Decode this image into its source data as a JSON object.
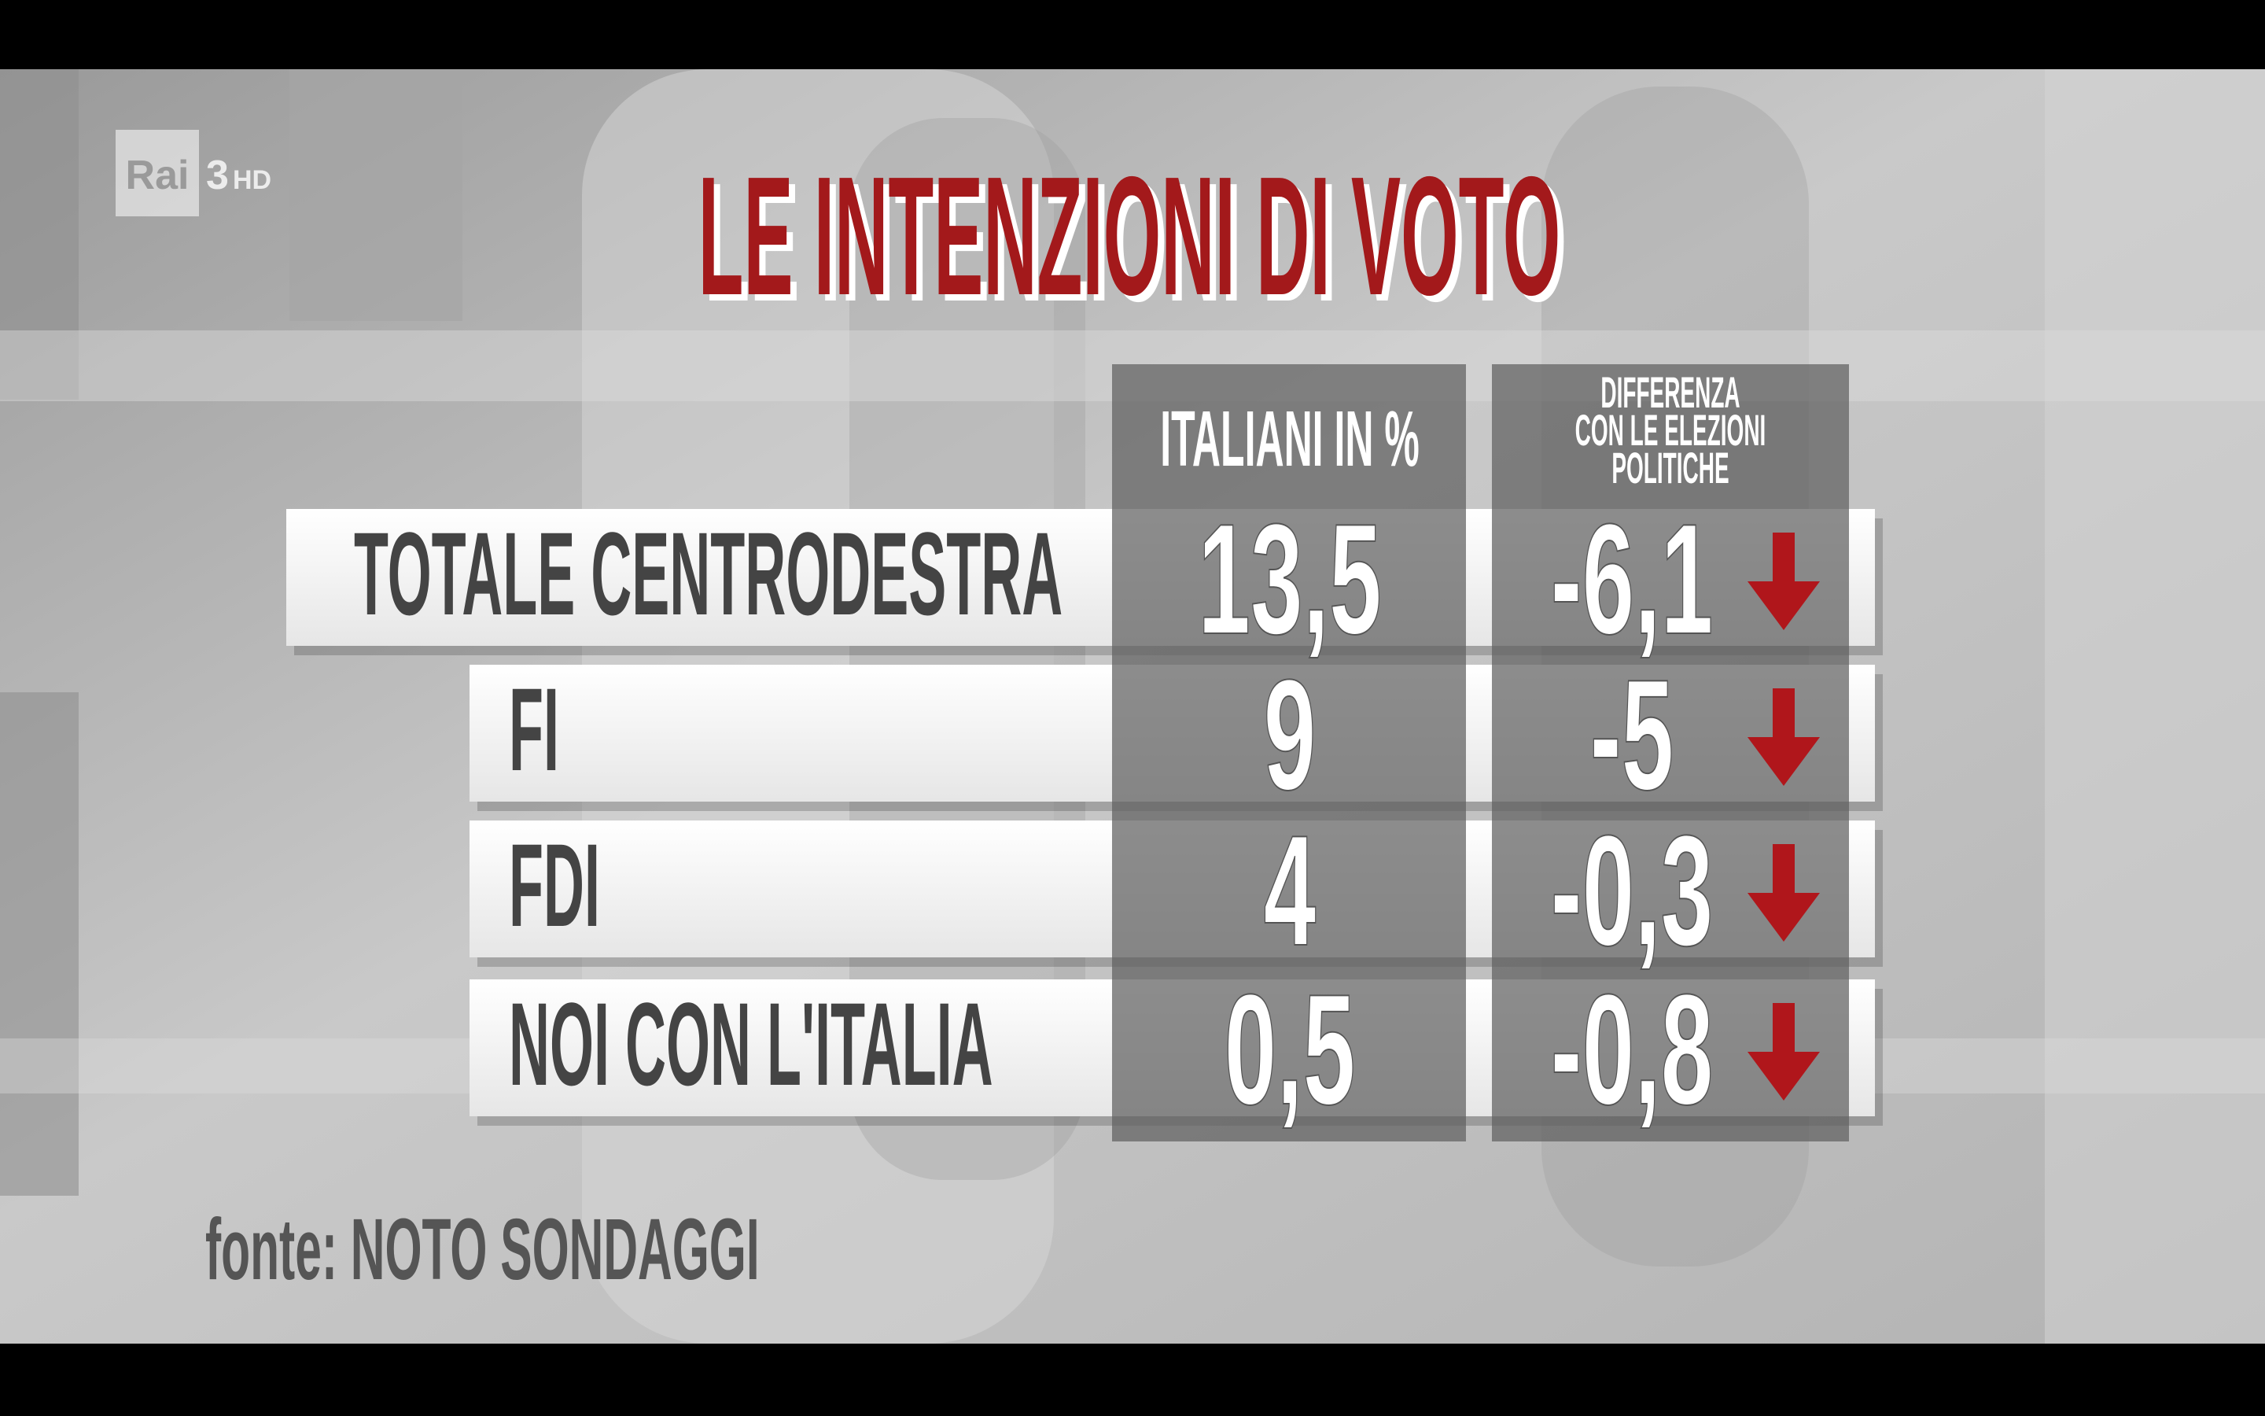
{
  "logo": {
    "brand": "Rai",
    "channel": "3",
    "quality": "HD"
  },
  "title": "LE INTENZIONI DI VOTO",
  "table": {
    "columns": [
      [
        "ITALIANI IN %"
      ],
      [
        "DIFFERENZA",
        "CON LE ELEZIONI",
        "POLITICHE"
      ]
    ],
    "rows": [
      [
        "TOTALE CENTRODESTRA",
        "13,5",
        "-6,1"
      ],
      [
        "FI",
        "9",
        "-5"
      ],
      [
        "FDI",
        "4",
        "-0,3"
      ],
      [
        "NOI CON L'ITALIA",
        "0,5",
        "-0,8"
      ]
    ]
  },
  "source": "fonte: NOTO SONDAGGI"
}
